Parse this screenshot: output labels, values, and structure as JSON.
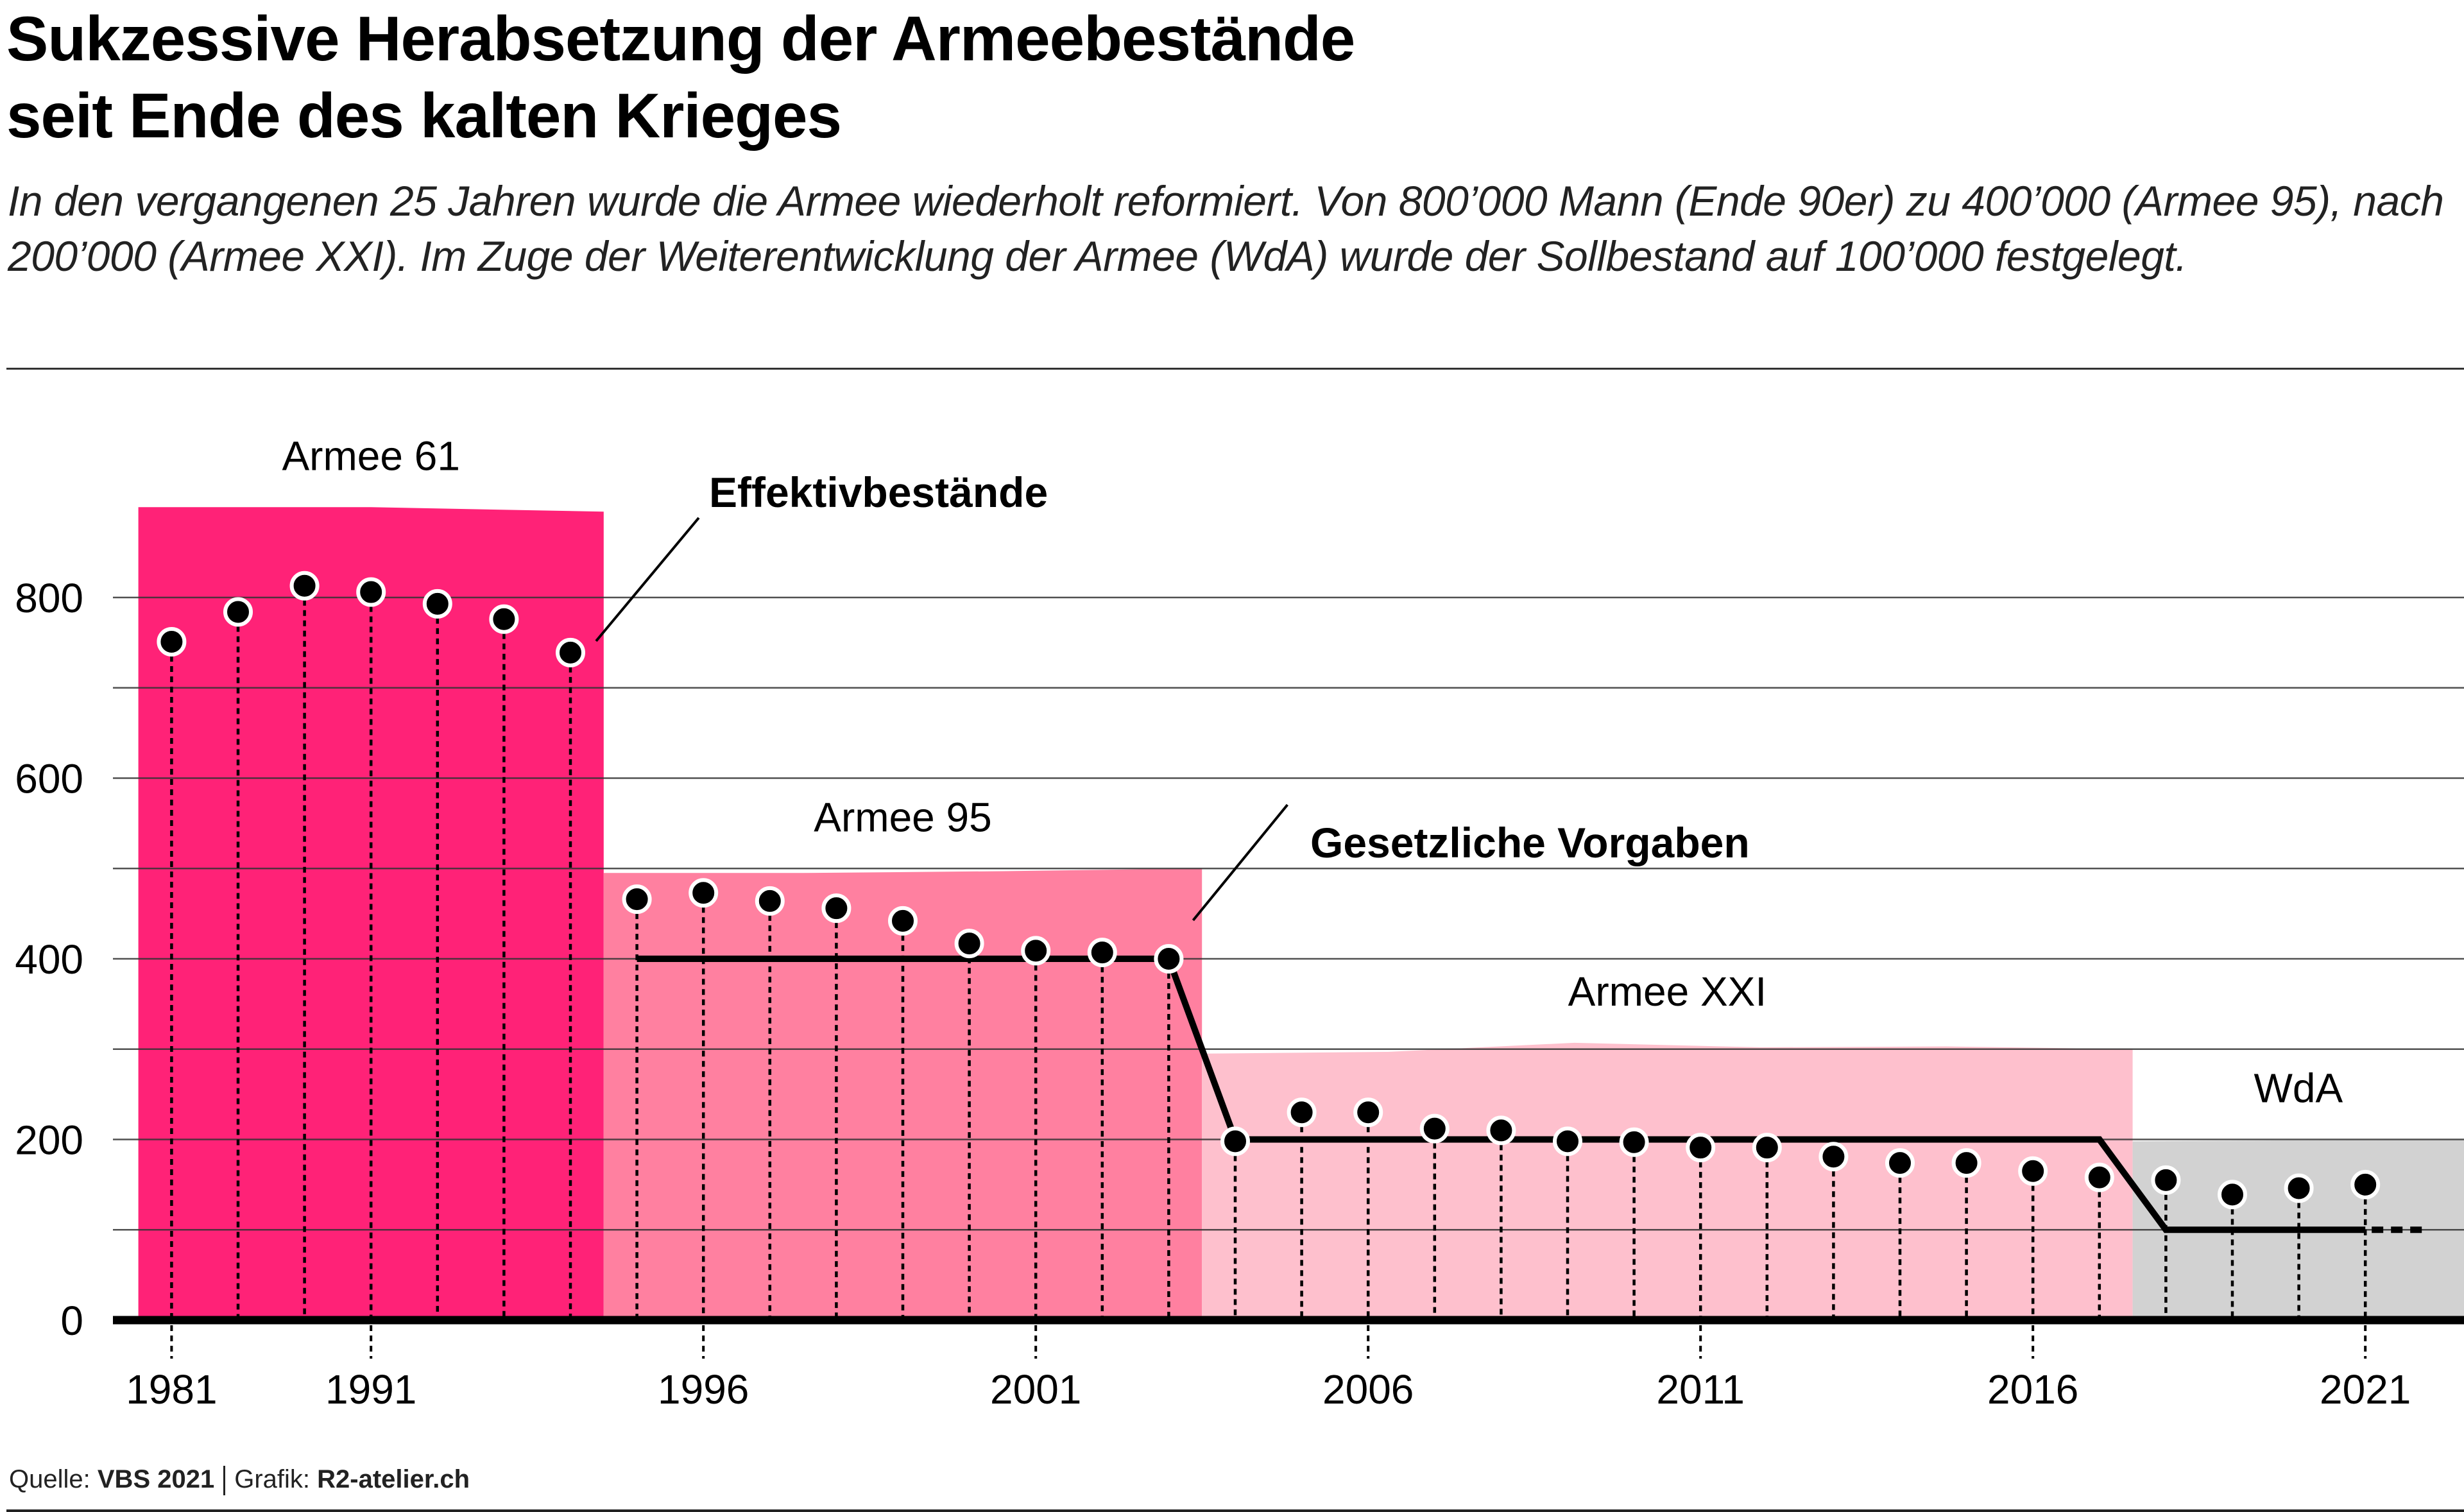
{
  "header": {
    "title_line1": "Sukzessive Herabsetzung der Armeebestände",
    "title_line2": "seit Ende des kalten Krieges",
    "subtitle": "In den vergangenen 25 Jahren wurde die Armee wiederholt reformiert. Von 800’000 Mann (Ende 90er) zu 400’000 (Armee 95), nach 200’000 (Armee XXI). Im Zuge der Weiterentwicklung der Armee (WdA) wurde der Sollbestand auf 100’000 festgelegt."
  },
  "footer": {
    "source_label": "Quelle:",
    "source_value": "VBS 2021",
    "graphic_label": "Grafik:",
    "graphic_value": "R2-atelier.ch"
  },
  "chart_data": {
    "type": "scatter",
    "title": "Sukzessive Herabsetzung der Armeebestände seit Ende des kalten Krieges",
    "xlabel": "",
    "ylabel": "",
    "ylim": [
      0,
      900
    ],
    "yticks": [
      0,
      200,
      400,
      600,
      800
    ],
    "ytick_labels": [
      "0",
      "200",
      "400",
      "600",
      "800"
    ],
    "y_minor_gridlines": [
      100,
      300,
      500,
      700
    ],
    "grid": true,
    "xtick_labels": [
      "1981",
      "1991",
      "1996",
      "2001",
      "2006",
      "2011",
      "2016",
      "2021"
    ],
    "xtick_slots": [
      -6,
      -3,
      2,
      7,
      12,
      17,
      22,
      27
    ],
    "colors": {
      "armee61": "#ff2277",
      "armee95": "#ff80a0",
      "armeeXXI": "#fec0cd",
      "wda": "#d2d2d2",
      "points": "#000000",
      "lines": "#000000"
    },
    "eras": [
      {
        "name": "Armee 61",
        "slot_start": -6.5,
        "slot_end": 0.5,
        "top": [
          900,
          900,
          895
        ],
        "color_key": "armee61"
      },
      {
        "name": "Armee 95",
        "slot_start": 0.5,
        "slot_end": 9.5,
        "top": [
          495,
          495,
          497,
          500
        ],
        "color_key": "armee95"
      },
      {
        "name": "Armee XXI",
        "slot_start": 9.5,
        "slot_end": 23.5,
        "top": [
          295,
          297,
          307,
          302,
          303,
          300
        ],
        "color_key": "armeeXXI"
      },
      {
        "name": "WdA",
        "slot_start": 23.5,
        "slot_end": 30,
        "top": [
          198,
          200
        ],
        "color_key": "wda"
      }
    ],
    "annotations": [
      {
        "text": "Effektivbestände",
        "target_series": "effektiv"
      },
      {
        "text": "Gesetzliche Vorgaben",
        "target_series": "vorgaben"
      }
    ],
    "series": [
      {
        "name": "Effektivbestände",
        "id": "effektiv",
        "slots": [
          -6,
          -5,
          -4,
          -3,
          -2,
          -1,
          0,
          1,
          2,
          3,
          4,
          5,
          6,
          7,
          8,
          9,
          10,
          11,
          12,
          13,
          14,
          15,
          16,
          17,
          18,
          19,
          20,
          21,
          22,
          23,
          24,
          25,
          26,
          27
        ],
        "years": [
          "1981",
          "",
          "",
          "1991",
          "1992",
          "1993",
          "1994",
          "1995",
          "1996",
          "1997",
          "1998",
          "1999",
          "2000",
          "2001",
          "2002",
          "2003",
          "2004",
          "2005",
          "2006",
          "2007",
          "2008",
          "2009",
          "2010",
          "2011",
          "2012",
          "2013",
          "2014",
          "2015",
          "2016",
          "2017",
          "2018",
          "2019",
          "2020",
          "2021"
        ],
        "values": [
          751,
          784,
          813,
          806,
          793,
          776,
          739,
          466,
          473,
          464,
          456,
          442,
          417,
          409,
          407,
          400,
          198,
          230,
          230,
          212,
          210,
          198,
          197,
          191,
          191,
          181,
          174,
          174,
          165,
          158,
          155,
          139,
          146,
          150
        ]
      },
      {
        "name": "Gesetzliche Vorgaben",
        "id": "vorgaben",
        "points": [
          {
            "slot": 1,
            "value": 400
          },
          {
            "slot": 9,
            "value": 400
          },
          {
            "slot": 10,
            "value": 200
          },
          {
            "slot": 23,
            "value": 200
          },
          {
            "slot": 24,
            "value": 100
          },
          {
            "slot": 27,
            "value": 100
          }
        ],
        "projection": [
          {
            "slot": 27,
            "value": 100
          },
          {
            "slot": 27.9,
            "value": 100
          }
        ]
      }
    ]
  }
}
